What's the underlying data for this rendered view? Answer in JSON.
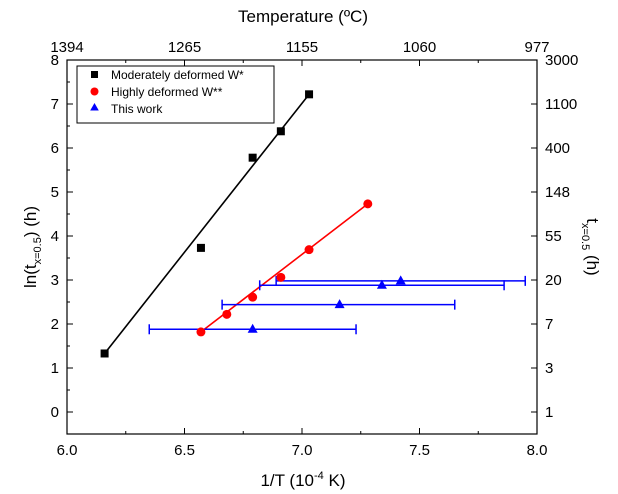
{
  "chart_data": {
    "type": "scatter",
    "title": "",
    "xlabel": "1/T (10",
    "xlabel_sup": "-4",
    "xlabel_tail": " K)",
    "top_label": "Temperature (ºC)",
    "ylabel_main": "ln(t",
    "ylabel_sub": "x=0.5",
    "ylabel_tail": ") (h)",
    "right_label_main": "t",
    "right_label_sub": "x=0.5",
    "right_label_tail": " (h)",
    "xlim": [
      6.0,
      8.0
    ],
    "ylim": [
      -0.5,
      8.0
    ],
    "x_ticks": [
      {
        "value": 6.0,
        "label": "6.0"
      },
      {
        "value": 6.5,
        "label": "6.5"
      },
      {
        "value": 7.0,
        "label": "7.0"
      },
      {
        "value": 7.5,
        "label": "7.5"
      },
      {
        "value": 8.0,
        "label": "8.0"
      }
    ],
    "y_ticks": [
      {
        "value": 0,
        "label": "0"
      },
      {
        "value": 1,
        "label": "1"
      },
      {
        "value": 2,
        "label": "2"
      },
      {
        "value": 3,
        "label": "3"
      },
      {
        "value": 4,
        "label": "4"
      },
      {
        "value": 5,
        "label": "5"
      },
      {
        "value": 6,
        "label": "6"
      },
      {
        "value": 7,
        "label": "7"
      },
      {
        "value": 8,
        "label": "8"
      }
    ],
    "top_ticks": [
      {
        "value": 6.0,
        "label": "1394"
      },
      {
        "value": 6.5,
        "label": "1265"
      },
      {
        "value": 7.0,
        "label": "1155"
      },
      {
        "value": 7.5,
        "label": "1060"
      },
      {
        "value": 8.0,
        "label": "977"
      }
    ],
    "right_ticks": [
      {
        "value": 0,
        "label": "1"
      },
      {
        "value": 1,
        "label": "3"
      },
      {
        "value": 2,
        "label": "7"
      },
      {
        "value": 3,
        "label": "20"
      },
      {
        "value": 4,
        "label": "55"
      },
      {
        "value": 5,
        "label": "148"
      },
      {
        "value": 6,
        "label": "400"
      },
      {
        "value": 7,
        "label": "1100"
      },
      {
        "value": 8,
        "label": "3000"
      }
    ],
    "series": [
      {
        "name": "Moderately deformed W*",
        "marker": "square",
        "color": "#000000",
        "points": [
          {
            "x": 6.16,
            "y": 1.33
          },
          {
            "x": 6.57,
            "y": 3.73
          },
          {
            "x": 6.79,
            "y": 5.78
          },
          {
            "x": 6.91,
            "y": 6.38
          },
          {
            "x": 7.03,
            "y": 7.22
          }
        ],
        "fit": [
          [
            6.16,
            1.33
          ],
          [
            7.03,
            7.22
          ]
        ]
      },
      {
        "name": "Highly deformed W**",
        "marker": "circle",
        "color": "#ff0000",
        "points": [
          {
            "x": 6.57,
            "y": 1.82
          },
          {
            "x": 6.68,
            "y": 2.22
          },
          {
            "x": 6.79,
            "y": 2.61
          },
          {
            "x": 6.91,
            "y": 3.06
          },
          {
            "x": 7.03,
            "y": 3.69
          },
          {
            "x": 7.28,
            "y": 4.73
          }
        ],
        "fit": [
          [
            6.57,
            1.82
          ],
          [
            7.28,
            4.73
          ]
        ]
      },
      {
        "name": "This work",
        "marker": "triangle",
        "color": "#0000ff",
        "points": [
          {
            "x": 6.79,
            "y": 1.88,
            "xerr": [
              6.35,
              7.23
            ]
          },
          {
            "x": 7.16,
            "y": 2.44,
            "xerr": [
              6.66,
              7.65
            ]
          },
          {
            "x": 7.34,
            "y": 2.88,
            "xerr": [
              6.82,
              7.86
            ]
          },
          {
            "x": 7.42,
            "y": 2.98,
            "xerr": [
              6.89,
              7.95
            ]
          }
        ]
      }
    ],
    "legend": {
      "position": "top-left"
    }
  }
}
